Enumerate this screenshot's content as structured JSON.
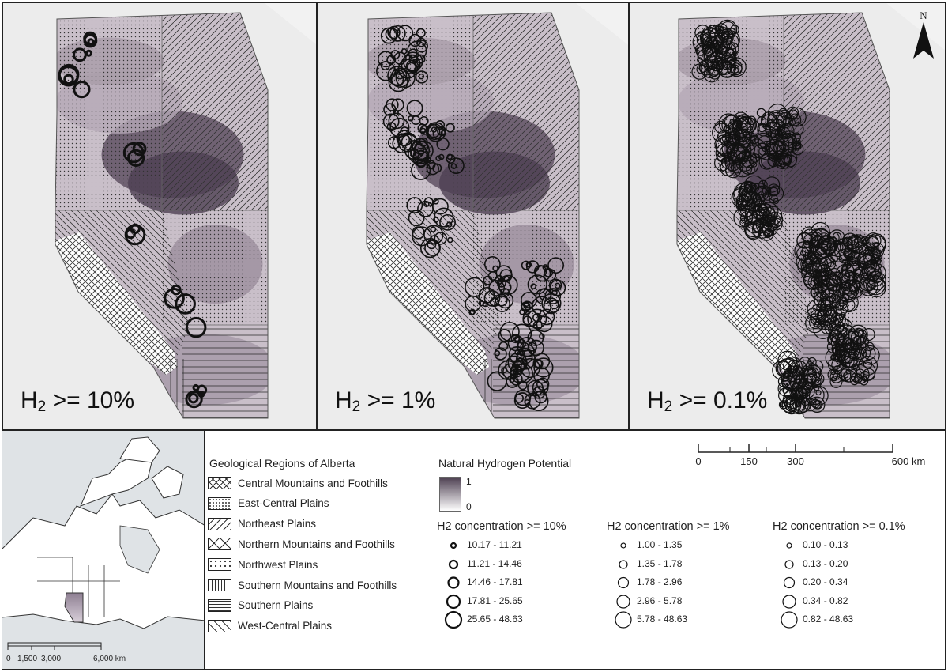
{
  "panels": [
    {
      "label_prefix": "H",
      "label_sub": "2",
      "label_suffix": " >= 10%",
      "density": 0,
      "marker_stroke": 3
    },
    {
      "label_prefix": "H",
      "label_sub": "2",
      "label_suffix": " >= 1%",
      "density": 1,
      "marker_stroke": 1.6
    },
    {
      "label_prefix": "H",
      "label_sub": "2",
      "label_suffix": " >= 0.1%",
      "density": 2,
      "marker_stroke": 1.2
    }
  ],
  "north_arrow": "N",
  "geo_legend": {
    "title": "Geological Regions of Alberta",
    "items": [
      {
        "label": "Central Mountains and Foothills",
        "pattern": "crosshatch"
      },
      {
        "label": "East-Central Plains",
        "pattern": "dots-fine"
      },
      {
        "label": "Northeast Plains",
        "pattern": "diag-right"
      },
      {
        "label": "Northern Mountains and Foothills",
        "pattern": "cross-x"
      },
      {
        "label": "Northwest Plains",
        "pattern": "dots-coarse"
      },
      {
        "label": "Southern Mountains and Foothills",
        "pattern": "vertical"
      },
      {
        "label": "Southern Plains",
        "pattern": "horizontal"
      },
      {
        "label": "West-Central Plains",
        "pattern": "diag-left"
      }
    ]
  },
  "potential_legend": {
    "title": "Natural Hydrogen Potential",
    "max": "1",
    "min": "0",
    "color_high": "#4e4052",
    "color_low": "#ffffff"
  },
  "concentration_legends": [
    {
      "title": "H2 concentration >= 10%",
      "classes": [
        "10.17 - 11.21",
        "11.21 - 14.46",
        "14.46 - 17.81",
        "17.81 - 25.65",
        "25.65 - 48.63"
      ]
    },
    {
      "title": "H2 concentration >= 1%",
      "classes": [
        "1.00 - 1.35",
        "1.35 - 1.78",
        "1.78 - 2.96",
        "2.96 - 5.78",
        "5.78 - 48.63"
      ]
    },
    {
      "title": "H2 concentration >= 0.1%",
      "classes": [
        "0.10 - 0.13",
        "0.13 - 0.20",
        "0.20 - 0.34",
        "0.34 - 0.82",
        "0.82 - 48.63"
      ]
    }
  ],
  "scale_bar": {
    "labels": [
      "0",
      "150",
      "300",
      "600 km"
    ],
    "unit": "km"
  },
  "inset_scale": {
    "labels": [
      "0",
      "1,500",
      "3,000",
      "6,000 km"
    ]
  }
}
